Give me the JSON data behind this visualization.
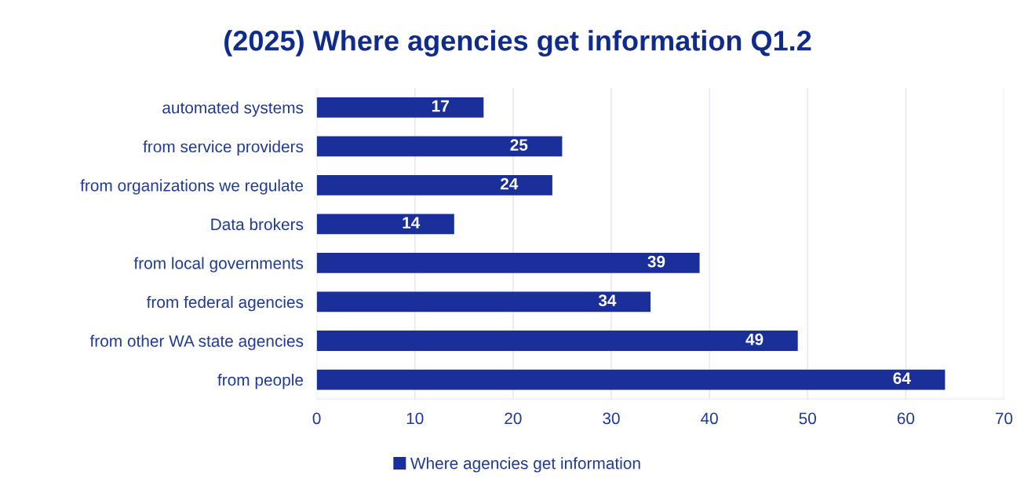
{
  "chart_data": {
    "type": "bar",
    "orientation": "horizontal",
    "title": "(2025) Where agencies get information Q1.2",
    "categories": [
      "automated systems",
      "from service providers",
      "from organizations we regulate",
      "Data brokers",
      "from local governments",
      "from federal agencies",
      "from other WA state agencies",
      "from people"
    ],
    "series": [
      {
        "name": "Where agencies get information",
        "color": "#1a2f9a",
        "values": [
          17,
          25,
          24,
          14,
          39,
          34,
          49,
          64
        ]
      }
    ],
    "xlim": [
      0,
      70
    ],
    "xticks": [
      0,
      10,
      20,
      30,
      40,
      50,
      60,
      70
    ],
    "grid": "x",
    "legend": "bottom",
    "data_labels": true
  }
}
